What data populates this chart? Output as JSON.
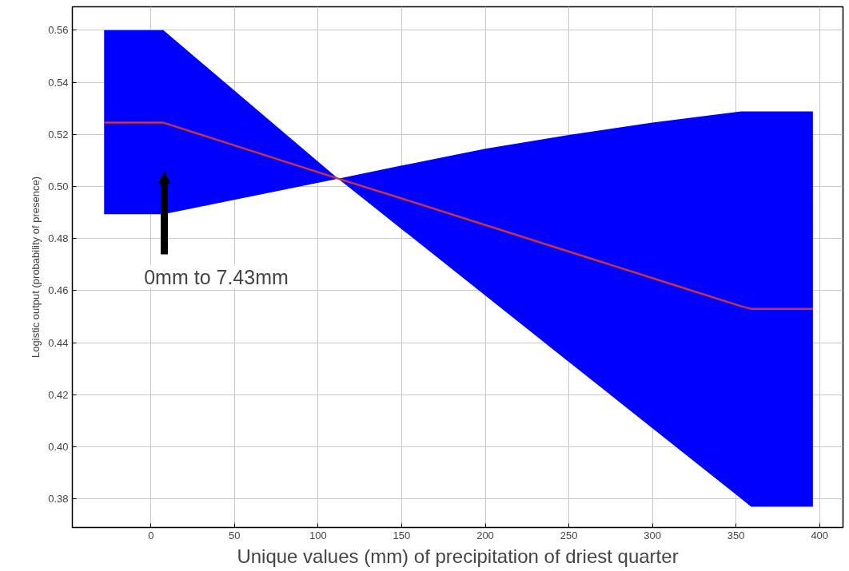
{
  "chart_data": {
    "type": "line",
    "xlabel": "Unique values (mm) of precipitation of driest quarter",
    "ylabel": "Logistic output (probability of presence)",
    "x": [
      -28,
      7.43,
      112,
      150,
      200,
      250,
      300,
      353,
      359,
      396
    ],
    "series": [
      {
        "color": "#c8324a",
        "values": [
          0.5245,
          0.5245,
          0.503,
          0.4954,
          0.4852,
          0.475,
          0.4648,
          0.454,
          0.453,
          0.453
        ],
        "lower": [
          0.4893,
          0.4893,
          0.503,
          0.4836,
          0.4581,
          0.4326,
          0.4071,
          0.3801,
          0.377,
          0.377
        ],
        "upper": [
          0.56,
          0.56,
          0.503,
          0.508,
          0.5145,
          0.5198,
          0.5245,
          0.5288,
          0.5288,
          0.5288
        ]
      }
    ],
    "xlim": [
      -47,
      414
    ],
    "ylim": [
      0.369,
      0.569
    ],
    "xticks": [
      0,
      50,
      100,
      150,
      200,
      250,
      300,
      350,
      400
    ],
    "yticks": [
      {
        "value": 0.38,
        "label": "0.38"
      },
      {
        "value": 0.4,
        "label": "0.40"
      },
      {
        "value": 0.42,
        "label": "0.42"
      },
      {
        "value": 0.44,
        "label": "0.44"
      },
      {
        "value": 0.46,
        "label": "0.46"
      },
      {
        "value": 0.48,
        "label": "0.48"
      },
      {
        "value": 0.5,
        "label": "0.50"
      },
      {
        "value": 0.52,
        "label": "0.52"
      },
      {
        "value": 0.54,
        "label": "0.54"
      },
      {
        "value": 0.56,
        "label": "0.56"
      }
    ],
    "grid": true,
    "annotations": [
      "0mm to 7.43mm"
    ]
  }
}
